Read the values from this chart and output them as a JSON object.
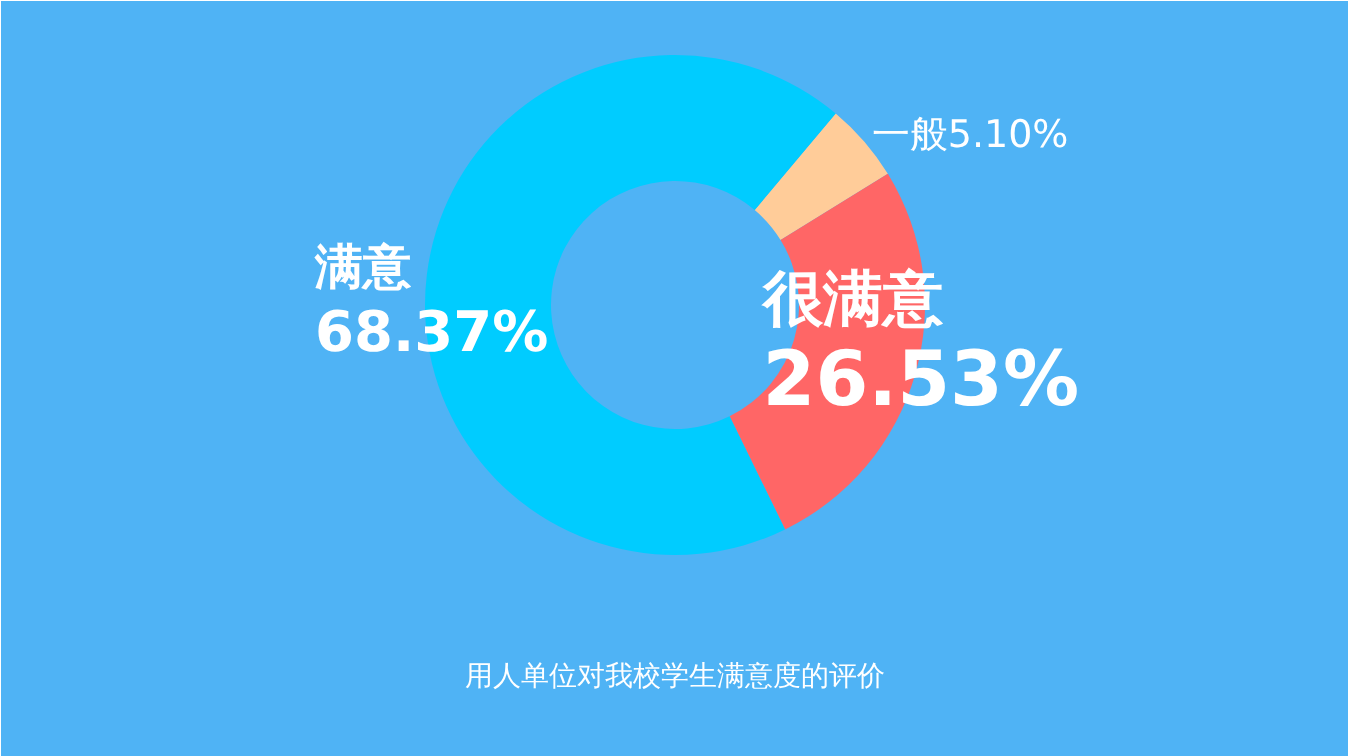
{
  "chart_data": {
    "type": "donut",
    "title": "用人单位对我校学生满意度的评价",
    "categories": [
      "一般",
      "很满意",
      "满意"
    ],
    "values": [
      5.1,
      26.53,
      68.37
    ],
    "colors": [
      "#ffcc99",
      "#ff6666",
      "#00ccff"
    ],
    "value_labels": [
      "5.10%",
      "26.53%",
      "68.37%"
    ]
  }
}
